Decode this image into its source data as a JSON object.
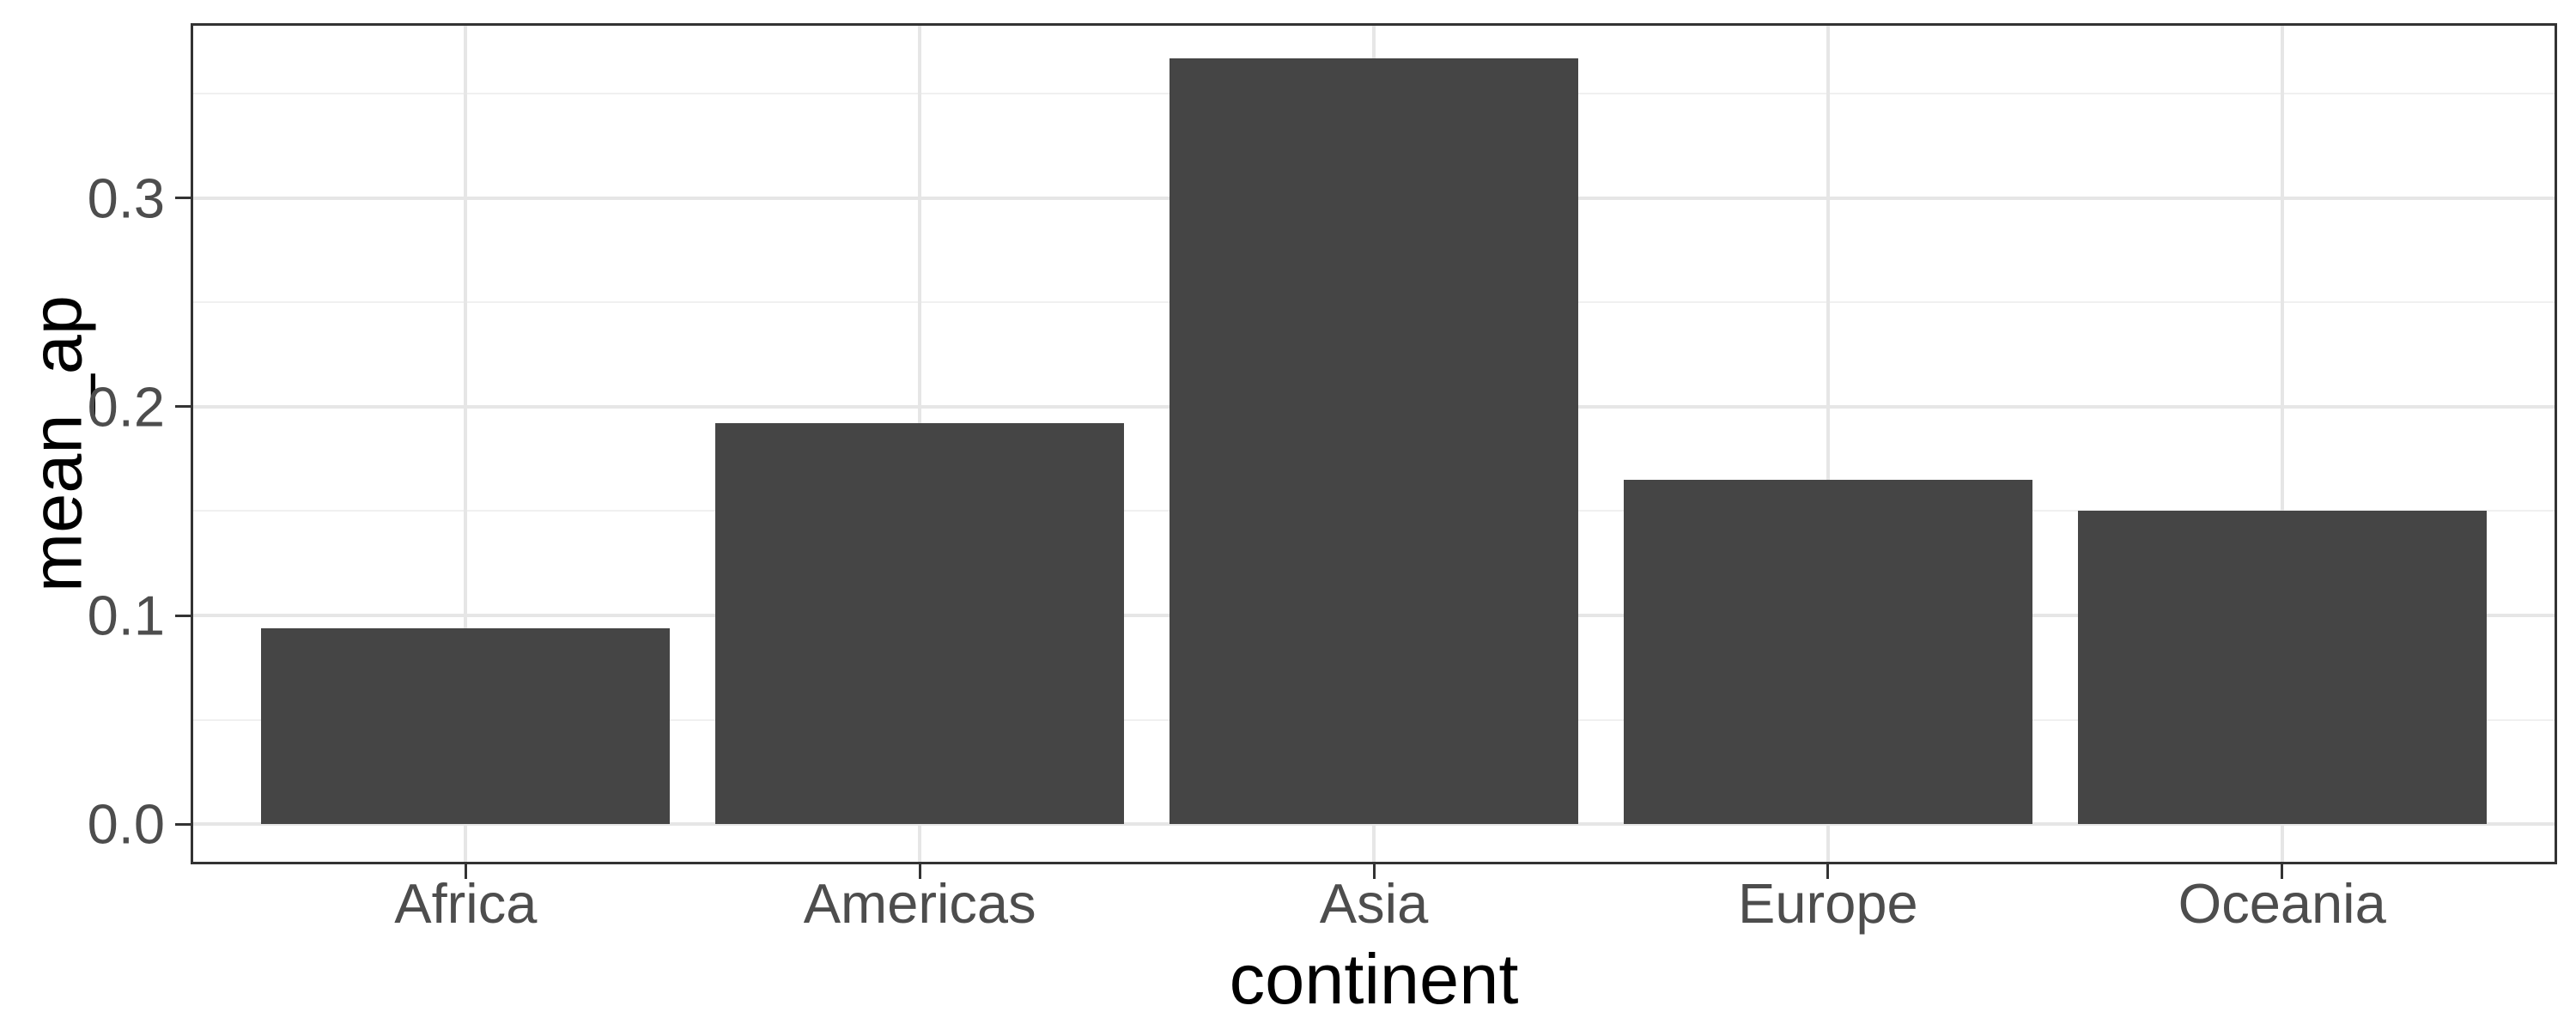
{
  "chart_data": {
    "type": "bar",
    "title": "",
    "xlabel": "continent",
    "ylabel": "mean_ap",
    "categories": [
      "Africa",
      "Americas",
      "Asia",
      "Europe",
      "Oceania"
    ],
    "values": [
      0.094,
      0.192,
      0.367,
      0.165,
      0.15
    ],
    "ylim": [
      -0.0181,
      0.3827
    ],
    "yticks": [
      0.0,
      0.1,
      0.2,
      0.3
    ],
    "ytick_labels": [
      "0.0",
      "0.1",
      "0.2",
      "0.3"
    ],
    "yticks_minor": [
      0.05,
      0.15,
      0.25,
      0.35
    ],
    "grid": "major and minor horizontal, major vertical at category centers",
    "legend_position": "none",
    "bar_color": "#454545",
    "grid_major_color": "#e6e6e6",
    "grid_minor_color": "#f0f0f0",
    "panel_border_color": "#333333",
    "tick_color": "#333333",
    "tick_label_color": "#4d4d4d",
    "axis_title_color": "#000000",
    "background_color": "#ffffff"
  }
}
